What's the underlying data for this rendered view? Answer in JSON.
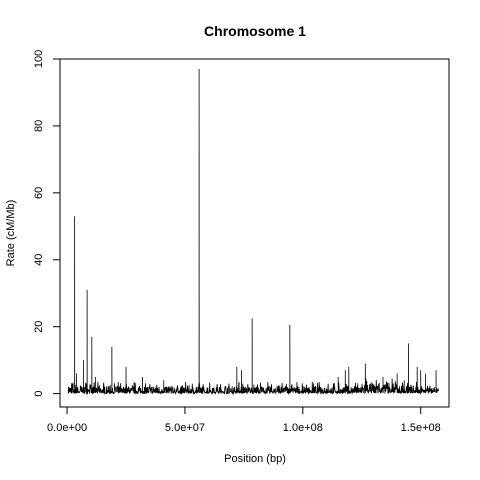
{
  "chart_data": {
    "type": "line",
    "title": "Chromosome 1",
    "xlabel": "Position (bp)",
    "ylabel": "Rate (cM/Mb)",
    "xlim": [
      -3000000,
      162000000
    ],
    "ylim": [
      -4,
      100
    ],
    "x_ticks": [
      0,
      50000000,
      100000000,
      150000000
    ],
    "x_tick_labels": [
      "0.0e+00",
      "5.0e+07",
      "1.0e+08",
      "1.5e+08"
    ],
    "y_ticks": [
      0,
      20,
      40,
      60,
      80,
      100
    ],
    "y_tick_labels": [
      "0",
      "20",
      "40",
      "60",
      "80",
      "100"
    ],
    "grid": false,
    "legend": "none",
    "line_color": "#000000",
    "x_start": 500000,
    "x_end": 157500000,
    "baseline_max": 3.5,
    "peaks": [
      {
        "x": 3200000,
        "y": 53
      },
      {
        "x": 4000000,
        "y": 6
      },
      {
        "x": 7000000,
        "y": 10
      },
      {
        "x": 8500000,
        "y": 31
      },
      {
        "x": 10500000,
        "y": 17
      },
      {
        "x": 12000000,
        "y": 5
      },
      {
        "x": 19000000,
        "y": 14
      },
      {
        "x": 25000000,
        "y": 8
      },
      {
        "x": 32000000,
        "y": 5
      },
      {
        "x": 41000000,
        "y": 4
      },
      {
        "x": 56000000,
        "y": 97
      },
      {
        "x": 72000000,
        "y": 8
      },
      {
        "x": 74000000,
        "y": 7
      },
      {
        "x": 78500000,
        "y": 22.5
      },
      {
        "x": 94500000,
        "y": 20.5
      },
      {
        "x": 115000000,
        "y": 5
      },
      {
        "x": 118000000,
        "y": 7
      },
      {
        "x": 119500000,
        "y": 8
      },
      {
        "x": 126500000,
        "y": 9
      },
      {
        "x": 134000000,
        "y": 5
      },
      {
        "x": 140000000,
        "y": 6
      },
      {
        "x": 143000000,
        "y": 4
      },
      {
        "x": 144800000,
        "y": 15
      },
      {
        "x": 148500000,
        "y": 8
      },
      {
        "x": 150000000,
        "y": 7
      },
      {
        "x": 152000000,
        "y": 6
      },
      {
        "x": 156500000,
        "y": 7
      }
    ]
  }
}
